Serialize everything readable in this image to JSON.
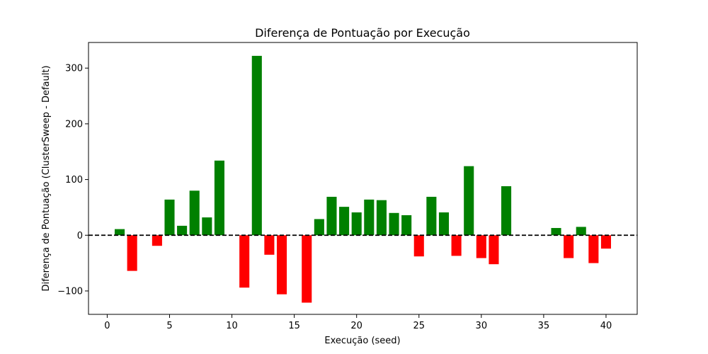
{
  "chart_data": {
    "type": "bar",
    "title": "Diferença de Pontuação por Execução",
    "xlabel": "Execução (seed)",
    "ylabel": "Diferença de Pontuação (ClusterSweep - Default)",
    "xlim": [
      -1.5,
      42.5
    ],
    "ylim": [
      -142,
      346
    ],
    "xticks": [
      0,
      5,
      10,
      15,
      20,
      25,
      30,
      35,
      40
    ],
    "xtick_labels": [
      "0",
      "5",
      "10",
      "15",
      "20",
      "25",
      "30",
      "35",
      "40"
    ],
    "yticks": [
      -100,
      0,
      100,
      200,
      300
    ],
    "ytick_labels": [
      "−100",
      "0",
      "100",
      "200",
      "300"
    ],
    "positive_color": "#008000",
    "negative_color": "#ff0000",
    "reference_line": {
      "y": 0,
      "style": "dashed",
      "color": "#000000"
    },
    "grid": false,
    "x": [
      1,
      2,
      4,
      5,
      6,
      7,
      8,
      9,
      11,
      12,
      13,
      14,
      16,
      17,
      18,
      19,
      20,
      21,
      22,
      23,
      24,
      25,
      26,
      27,
      28,
      29,
      30,
      31,
      32,
      36,
      37,
      38,
      39,
      40
    ],
    "values": [
      11,
      -64,
      -19,
      64,
      17,
      80,
      32,
      134,
      -94,
      322,
      -35,
      -106,
      -121,
      29,
      69,
      51,
      41,
      64,
      63,
      40,
      36,
      -38,
      69,
      41,
      -37,
      124,
      -41,
      -52,
      88,
      13,
      -41,
      15,
      -50,
      -24
    ]
  }
}
